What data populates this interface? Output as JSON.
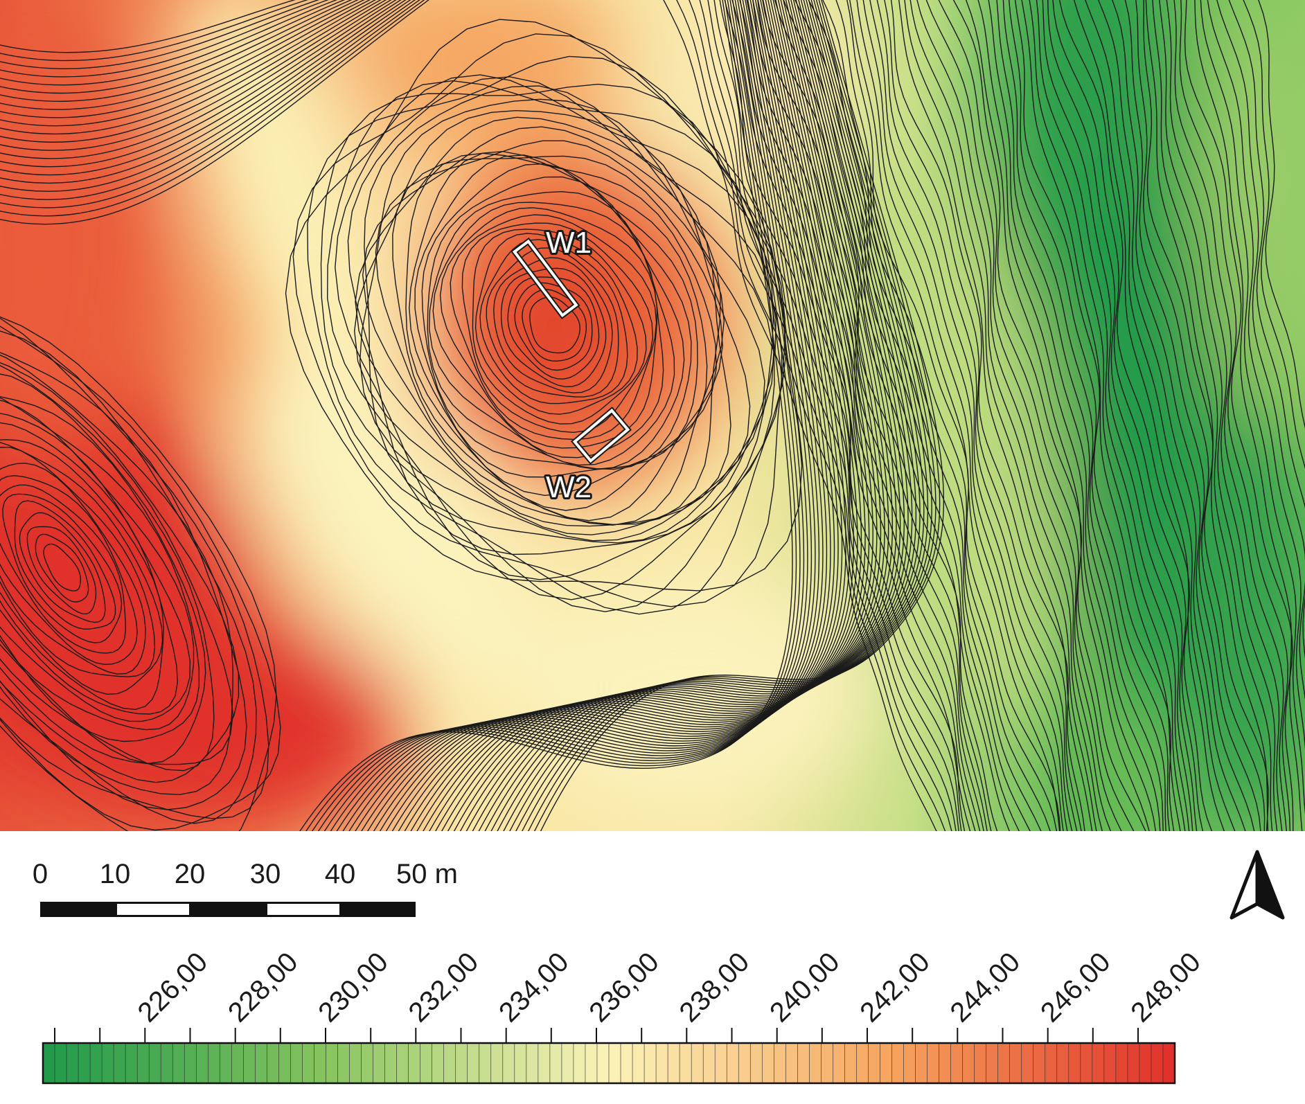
{
  "map": {
    "trenches": [
      {
        "id": "W1",
        "label": "W1"
      },
      {
        "id": "W2",
        "label": "W2"
      }
    ],
    "colors": {
      "low": "#1f9a4a",
      "mid_low": "#a9d46b",
      "mid": "#fbf3b8",
      "mid_high": "#f6a45e",
      "high": "#e0302a",
      "contour_line": "#1a1a1a",
      "trench_outline": "#ffffff"
    }
  },
  "scale_bar": {
    "labels": [
      "0",
      "10",
      "20",
      "30",
      "40",
      "50 m"
    ]
  },
  "north_arrow": {
    "icon": "north-arrow-icon"
  },
  "legend": {
    "min": 224,
    "max": 248,
    "ticks": [
      "226,00",
      "228,00",
      "230,00",
      "232,00",
      "234,00",
      "236,00",
      "238,00",
      "240,00",
      "242,00",
      "244,00",
      "246,00",
      "248,00"
    ]
  }
}
